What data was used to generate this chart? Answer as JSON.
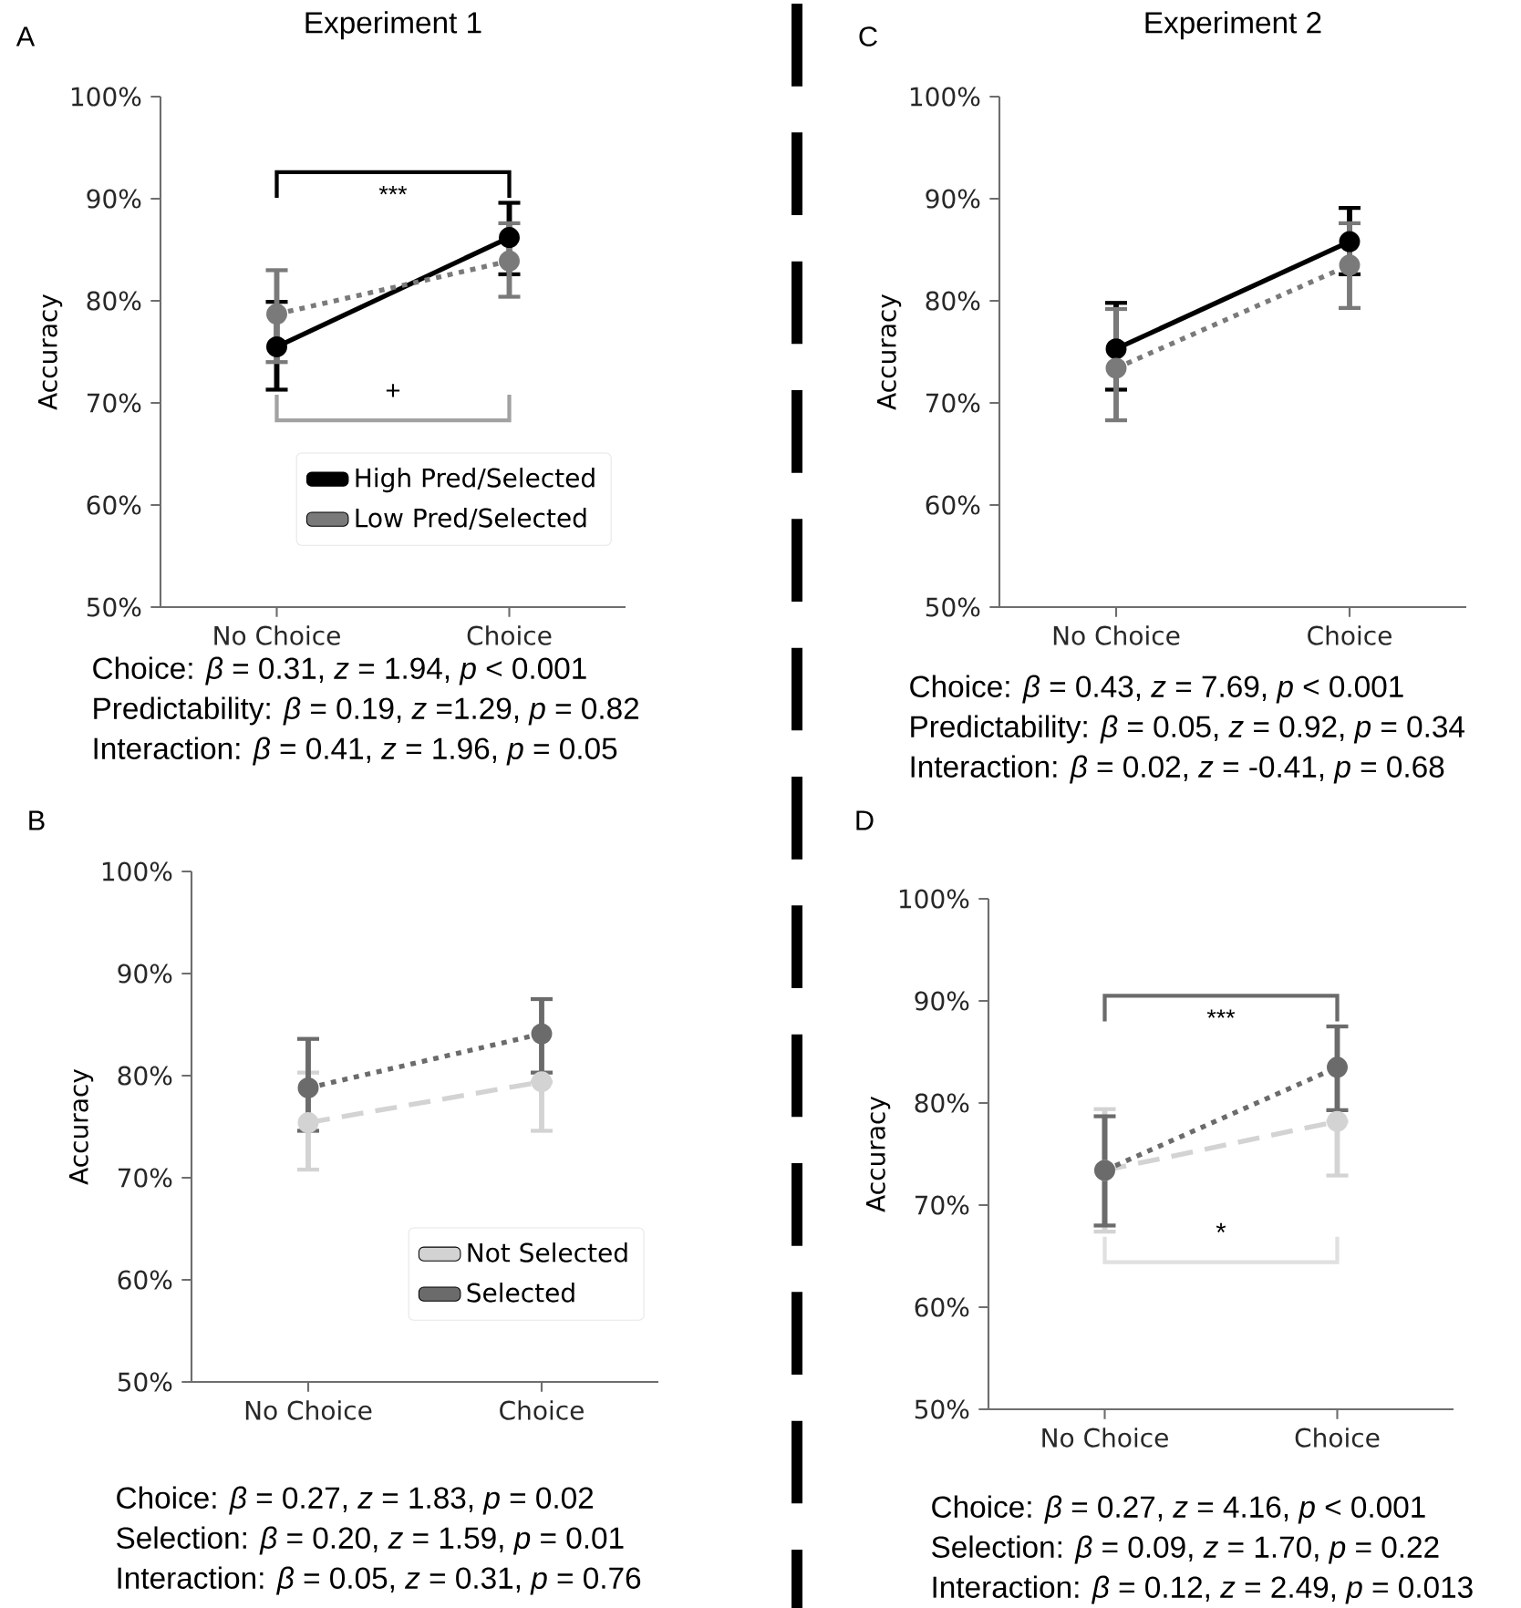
{
  "chart_data": [
    {
      "type": "line",
      "title": "Experiment 1",
      "ylabel": "Accuracy",
      "categories": [
        "No Choice",
        "Choice"
      ],
      "marker": "circle",
      "legend": "bottom right",
      "ylim": [
        50,
        100
      ],
      "yticks": [
        {
          "value": 50,
          "label": "50%"
        },
        {
          "value": 60,
          "label": "60%"
        },
        {
          "value": 70,
          "label": "70%"
        },
        {
          "value": 80,
          "label": "80%"
        },
        {
          "value": 90,
          "label": "90%"
        },
        {
          "value": 100,
          "label": "100%"
        }
      ],
      "series": [
        {
          "name": "High Pred/Selected",
          "color": "#000000",
          "line_style": "solid",
          "values": [
            75.5,
            86.2
          ],
          "errors": [
            [
              71.3,
              79.9
            ],
            [
              82.6,
              89.6
            ]
          ]
        },
        {
          "name": "Low Pred/Selected",
          "color": "#7a7a7a",
          "line_style": "dotted",
          "values": [
            78.7,
            83.9
          ],
          "errors": [
            [
              74.0,
              83.0
            ],
            [
              80.4,
              87.6
            ]
          ]
        }
      ],
      "annotations": [
        "A",
        "Choice: *β* = 0.31, *z* = 1.94, *p* < 0.001",
        "Predictability: *β* = 0.19, *z* =1.29, *p* = 0.82",
        "Interaction: *β* = 0.41, *z* = 1.96, *p* = 0.05",
        "***",
        "+"
      ]
    },
    {
      "type": "line",
      "title": "Experiment 2",
      "ylabel": "Accuracy",
      "categories": [
        "No Choice",
        "Choice"
      ],
      "marker": "circle",
      "ylim": [
        50,
        100
      ],
      "yticks": [
        {
          "value": 50,
          "label": "50%"
        },
        {
          "value": 60,
          "label": "60%"
        },
        {
          "value": 70,
          "label": "70%"
        },
        {
          "value": 80,
          "label": "80%"
        },
        {
          "value": 90,
          "label": "90%"
        },
        {
          "value": 100,
          "label": "100%"
        }
      ],
      "series": [
        {
          "color": "#000000",
          "line_style": "solid",
          "values": [
            75.3,
            85.8
          ],
          "errors": [
            [
              71.3,
              79.8
            ],
            [
              82.6,
              89.1
            ]
          ]
        },
        {
          "color": "#7a7a7a",
          "line_style": "dotted",
          "values": [
            73.4,
            83.5
          ],
          "errors": [
            [
              68.3,
              79.2
            ],
            [
              79.3,
              87.6
            ]
          ]
        }
      ],
      "annotations": [
        "C",
        "Choice: *β* = 0.43, *z* = 7.69, *p* < 0.001",
        "Predictability: *β* = 0.05, *z* = 0.92, *p* = 0.34",
        "Interaction: *β* = 0.02, *z* = -0.41, *p* = 0.68"
      ]
    },
    {
      "type": "line",
      "ylabel": "Accuracy",
      "categories": [
        "No Choice",
        "Choice"
      ],
      "marker": "circle",
      "legend": "bottom right",
      "ylim": [
        50,
        100
      ],
      "yticks": [
        {
          "value": 50,
          "label": "50%"
        },
        {
          "value": 60,
          "label": "60%"
        },
        {
          "value": 70,
          "label": "70%"
        },
        {
          "value": 80,
          "label": "80%"
        },
        {
          "value": 90,
          "label": "90%"
        },
        {
          "value": 100,
          "label": "100%"
        }
      ],
      "series": [
        {
          "name": "Not Selected",
          "color": "#d3d3d3",
          "line_style": "dashed",
          "values": [
            75.4,
            79.4
          ],
          "errors": [
            [
              70.8,
              80.3
            ],
            [
              74.6,
              79.4
            ]
          ]
        },
        {
          "name": "Selected",
          "color": "#6b6b6b",
          "line_style": "dotted",
          "values": [
            78.8,
            84.1
          ],
          "errors": [
            [
              74.6,
              83.6
            ],
            [
              80.3,
              87.5
            ]
          ]
        }
      ],
      "annotations": [
        "B",
        "Choice: *β* = 0.27, *z* = 1.83, *p* = 0.02",
        "Selection: *β* = 0.20, *z* = 1.59, *p* = 0.01",
        "Interaction: *β* = 0.05, *z* = 0.31, *p* = 0.76"
      ]
    },
    {
      "type": "line",
      "ylabel": "Accuracy",
      "categories": [
        "No Choice",
        "Choice"
      ],
      "marker": "circle",
      "ylim": [
        50,
        100
      ],
      "yticks": [
        {
          "value": 50,
          "label": "50%"
        },
        {
          "value": 60,
          "label": "60%"
        },
        {
          "value": 70,
          "label": "70%"
        },
        {
          "value": 80,
          "label": "80%"
        },
        {
          "value": 90,
          "label": "90%"
        },
        {
          "value": 100,
          "label": "100%"
        }
      ],
      "series": [
        {
          "color": "#d3d3d3",
          "line_style": "dashed",
          "values": [
            73.4,
            78.2
          ],
          "errors": [
            [
              67.4,
              79.4
            ],
            [
              72.9,
              78.2
            ]
          ]
        },
        {
          "color": "#6b6b6b",
          "line_style": "dotted",
          "values": [
            73.4,
            83.5
          ],
          "errors": [
            [
              68.0,
              78.7
            ],
            [
              79.3,
              87.5
            ]
          ]
        }
      ],
      "annotations": [
        "D",
        "Choice: *β* = 0.27, *z* = 4.16, *p* < 0.001",
        "Selection: *β* = 0.09, *z* = 1.70, *p* = 0.22",
        "Interaction: *β* = 0.12, *z* = 2.49, *p* = 0.013",
        "***",
        "*"
      ]
    }
  ]
}
